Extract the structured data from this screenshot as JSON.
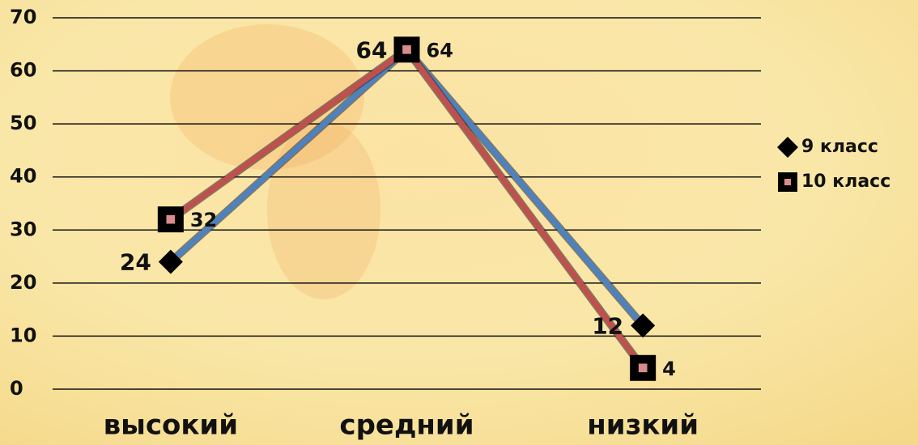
{
  "chart_data": {
    "type": "line",
    "categories": [
      "высокий",
      "средний",
      "низкий"
    ],
    "series": [
      {
        "name": "9 класс",
        "color": "#4f81bd",
        "marker": "diamond",
        "values": [
          24,
          64,
          12
        ]
      },
      {
        "name": "10 класс",
        "color": "#c0504d",
        "marker": "square",
        "values": [
          32,
          64,
          4
        ]
      }
    ],
    "ylim": [
      0,
      70
    ],
    "yticks": [
      0,
      10,
      20,
      30,
      40,
      50,
      60,
      70
    ],
    "grid": true,
    "legend": "right"
  }
}
